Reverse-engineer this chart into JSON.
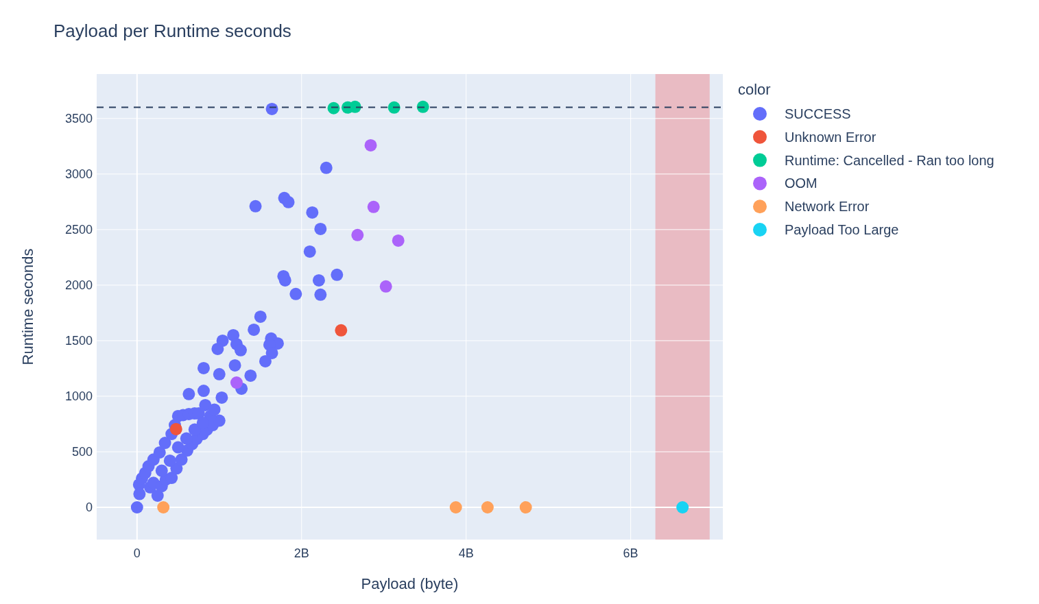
{
  "chart_data": {
    "type": "scatter",
    "title": "Payload per Runtime seconds",
    "xlabel": "Payload (byte)",
    "ylabel": "Runtime seconds",
    "legend_title": "color",
    "legend": "right",
    "grid": true,
    "marker": "circle",
    "xlim": [
      -490000000,
      7120000000
    ],
    "xticks": [
      0,
      {
        "value": 2000000000,
        "label": "2B"
      },
      {
        "value": 4000000000,
        "label": "4B"
      },
      {
        "value": 6000000000,
        "label": "6B"
      }
    ],
    "ylim": [
      -290,
      3900
    ],
    "yticks": [
      0,
      500,
      1000,
      1500,
      2000,
      2500,
      3000,
      3500
    ],
    "ref_lines": [
      {
        "axis": "y",
        "value": 3600,
        "color": "#2a3f5f",
        "line_style": "dashed"
      }
    ],
    "bands": [
      {
        "axis": "x",
        "from": 6300000000,
        "to": 6960000000,
        "color": "#e9bbc3"
      }
    ],
    "series": [
      {
        "name": "SUCCESS",
        "color": "#636efa",
        "x": [
          0,
          160000000,
          200000000,
          250000000,
          300000000,
          350000000,
          420000000,
          480000000,
          540000000,
          610000000,
          670000000,
          725000000,
          800000000,
          850000000,
          920000000,
          1000000000,
          25000000,
          60000000,
          100000000,
          140000000,
          200000000,
          275000000,
          340000000,
          420000000,
          460000000,
          500000000,
          560000000,
          630000000,
          700000000,
          750000000,
          890000000,
          300000000,
          400000000,
          500000000,
          600000000,
          700000000,
          800000000,
          30000000,
          1640000000,
          2300000000,
          1440000000,
          1790000000,
          1840000000,
          2130000000,
          2230000000,
          2100000000,
          1780000000,
          1800000000,
          2210000000,
          2430000000,
          1930000000,
          2230000000,
          1500000000,
          1420000000,
          1630000000,
          1710000000,
          1610000000,
          1640000000,
          1560000000,
          1170000000,
          1040000000,
          1210000000,
          1260000000,
          980000000,
          1190000000,
          1380000000,
          1270000000,
          1000000000,
          810000000,
          630000000,
          1030000000,
          810000000,
          830000000,
          940000000
        ],
        "values": [
          0,
          180,
          220,
          105,
          190,
          250,
          265,
          350,
          430,
          512,
          570,
          617,
          660,
          700,
          740,
          780,
          204,
          260,
          310,
          370,
          430,
          494,
          580,
          660,
          740,
          821,
          830,
          840,
          845,
          845,
          821,
          330,
          420,
          540,
          620,
          700,
          760,
          120,
          3586,
          3056,
          2710,
          2784,
          2747,
          2654,
          2506,
          2302,
          2080,
          2043,
          2043,
          2093,
          1920,
          1914,
          1716,
          1599,
          1519,
          1475,
          1463,
          1389,
          1315,
          1549,
          1500,
          1469,
          1414,
          1426,
          1278,
          1185,
          1068,
          1198,
          1253,
          1019,
          988,
          1049,
          920,
          880
        ]
      },
      {
        "name": "Unknown Error",
        "color": "#ef553b",
        "x": [
          475000000,
          2480000000
        ],
        "values": [
          704,
          1593
        ]
      },
      {
        "name": "Runtime: Cancelled - Ran too long",
        "color": "#00cc96",
        "x": [
          2390000000,
          2560000000,
          2650000000,
          3125000000,
          3475000000
        ],
        "values": [
          3593,
          3599,
          3605,
          3599,
          3605
        ]
      },
      {
        "name": "OOM",
        "color": "#ab63fa",
        "x": [
          2840000000,
          2875000000,
          2680000000,
          3175000000,
          3025000000,
          1210000000
        ],
        "values": [
          3259,
          2704,
          2451,
          2401,
          1988,
          1123
        ]
      },
      {
        "name": "Network Error",
        "color": "#ffa15a",
        "x": [
          320000000,
          3875000000,
          4260000000,
          4725000000
        ],
        "values": [
          0,
          0,
          0,
          0
        ]
      },
      {
        "name": "Payload Too Large",
        "color": "#19d3f3",
        "x": [
          6630000000
        ],
        "values": [
          0
        ]
      }
    ]
  }
}
